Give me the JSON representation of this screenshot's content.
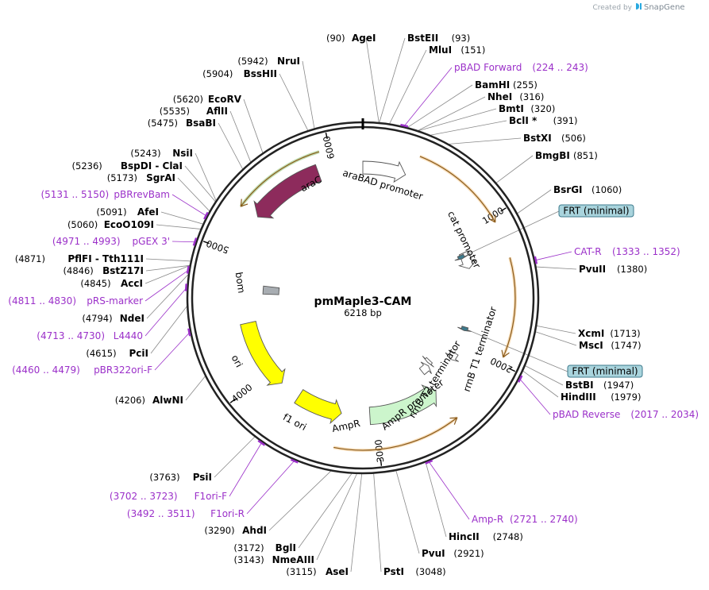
{
  "watermark": {
    "prefix": "Created by",
    "brand": "SnapGene"
  },
  "plasmid": {
    "name": "pmMaple3-CAM",
    "length": "6218 bp",
    "total_bp": 6218
  },
  "ticks": [
    "1000",
    "2000",
    "3000",
    "4000",
    "5000",
    "6000"
  ],
  "features": [
    {
      "id": "araC",
      "label": "araC",
      "start": 5312,
      "end": 5880,
      "color": "#8d2b5c",
      "text_color": "#ffffff",
      "direction": "reverse"
    },
    {
      "id": "araBAD-promoter",
      "label": "araBAD promoter",
      "start": 6218,
      "end": 330,
      "color": "#ffffff",
      "text_color": "#000000",
      "direction": "forward"
    },
    {
      "id": "cat-promoter",
      "label": "cat promoter",
      "start": 1140,
      "end": 1290,
      "color": "#ffffff",
      "text_color": "#000000",
      "direction": "forward"
    },
    {
      "id": "frt-1",
      "label": "FRT (minimal)",
      "start": 1150,
      "end": 1185,
      "color": "#3d7a8c",
      "text_color": "#000000",
      "direction": "forward"
    },
    {
      "id": "frt-2",
      "label": "FRT (minimal)",
      "start": 1830,
      "end": 1865,
      "color": "#3d7a8c",
      "text_color": "#000000",
      "direction": "forward"
    },
    {
      "id": "rrnB-T1",
      "label": "rrnB T1 terminator",
      "start": 2090,
      "end": 2160,
      "color": "#ffffff",
      "text_color": "#000000",
      "direction": "forward"
    },
    {
      "id": "rrnB-T2",
      "label": "rrnB T2 terminator",
      "start": 2300,
      "end": 2330,
      "color": "#ffffff",
      "text_color": "#000000",
      "direction": "forward"
    },
    {
      "id": "ampr-promoter",
      "label": "AmpR promoter",
      "start": 2350,
      "end": 2440,
      "color": "#ffffff",
      "text_color": "#000000",
      "direction": "reverse"
    },
    {
      "id": "AmpR",
      "label": "AmpR",
      "start": 2450,
      "end": 3050,
      "color": "#ccf5cc",
      "text_color": "#000000",
      "direction": "reverse"
    },
    {
      "id": "f1-ori",
      "label": "f1 ori",
      "start": 3290,
      "end": 3680,
      "color": "#ffff00",
      "text_color": "#000000",
      "direction": "reverse"
    },
    {
      "id": "ori",
      "label": "ori",
      "start": 3860,
      "end": 4450,
      "color": "#ffff00",
      "text_color": "#000000",
      "direction": "reverse"
    },
    {
      "id": "bom",
      "label": "bom",
      "start": 4700,
      "end": 4780,
      "color": "#a8adb2",
      "text_color": "#000000",
      "direction": "none"
    }
  ],
  "orf_arcs": [
    {
      "start": 5300,
      "end": 5930,
      "color": "#4b9e1e",
      "direction": "reverse"
    },
    {
      "start": 380,
      "end": 1040,
      "color": "#e8a13c",
      "direction": "forward"
    },
    {
      "start": 1290,
      "end": 1950,
      "color": "#e8a13c",
      "direction": "forward"
    },
    {
      "start": 2450,
      "end": 3300,
      "color": "#e8a13c",
      "direction": "reverse"
    }
  ],
  "sites_right": [
    {
      "name": "AgeI",
      "pos": "(90)",
      "position": 90,
      "name_first": false
    },
    {
      "name": "BstEII",
      "pos": "(93)",
      "position": 93,
      "name_first": true
    },
    {
      "name": "MluI",
      "pos": "(151)",
      "position": 151,
      "name_first": true
    },
    {
      "name": "BamHI",
      "pos": "(255)",
      "position": 255,
      "name_first": true
    },
    {
      "name": "NheI",
      "pos": "(316)",
      "position": 316,
      "name_first": true
    },
    {
      "name": "BmtI",
      "pos": "(320)",
      "position": 320,
      "name_first": true
    },
    {
      "name": "BclI *",
      "pos": "(391)",
      "position": 391,
      "name_first": true
    },
    {
      "name": "BstXI",
      "pos": "(506)",
      "position": 506,
      "name_first": true
    },
    {
      "name": "BmgBI",
      "pos": "(851)",
      "position": 851,
      "name_first": true
    },
    {
      "name": "BsrGI",
      "pos": "(1060)",
      "position": 1060,
      "name_first": true
    },
    {
      "name": "PvuII",
      "pos": "(1380)",
      "position": 1380,
      "name_first": true
    },
    {
      "name": "XcmI",
      "pos": "(1713)",
      "position": 1713,
      "name_first": true
    },
    {
      "name": "MscI",
      "pos": "(1747)",
      "position": 1747,
      "name_first": true
    },
    {
      "name": "BstBI",
      "pos": "(1947)",
      "position": 1947,
      "name_first": true
    },
    {
      "name": "HindIII",
      "pos": "(1979)",
      "position": 1979,
      "name_first": true
    },
    {
      "name": "HincII",
      "pos": "(2748)",
      "position": 2748,
      "name_first": true
    },
    {
      "name": "PvuI",
      "pos": "(2921)",
      "position": 2921,
      "name_first": true
    },
    {
      "name": "PstI",
      "pos": "(3048)",
      "position": 3048,
      "name_first": true
    }
  ],
  "sites_left": [
    {
      "name": "NruI",
      "pos": "(5942)",
      "position": 5942
    },
    {
      "name": "BssHII",
      "pos": "(5904)",
      "position": 5904
    },
    {
      "name": "EcoRV",
      "pos": "(5620)",
      "position": 5620
    },
    {
      "name": "AflII",
      "pos": "(5535)",
      "position": 5535
    },
    {
      "name": "BsaBI",
      "pos": "(5475)",
      "position": 5475
    },
    {
      "name": "NsiI",
      "pos": "(5243)",
      "position": 5243
    },
    {
      "name": "BspDI - ClaI",
      "pos": "(5236)",
      "position": 5236
    },
    {
      "name": "SgrAI",
      "pos": "(5173)",
      "position": 5173
    },
    {
      "name": "AfeI",
      "pos": "(5091)",
      "position": 5091
    },
    {
      "name": "EcoO109I",
      "pos": "(5060)",
      "position": 5060
    },
    {
      "name": "PflFI - Tth111I",
      "pos": "(4871)",
      "position": 4871
    },
    {
      "name": "BstZ17I",
      "pos": "(4846)",
      "position": 4846
    },
    {
      "name": "AccI",
      "pos": "(4845)",
      "position": 4845
    },
    {
      "name": "NdeI",
      "pos": "(4794)",
      "position": 4794
    },
    {
      "name": "PciI",
      "pos": "(4615)",
      "position": 4615
    },
    {
      "name": "AlwNI",
      "pos": "(4206)",
      "position": 4206
    },
    {
      "name": "PsiI",
      "pos": "(3763)",
      "position": 3763
    },
    {
      "name": "AhdI",
      "pos": "(3290)",
      "position": 3290
    },
    {
      "name": "BglI",
      "pos": "(3172)",
      "position": 3172
    },
    {
      "name": "NmeAIII",
      "pos": "(3143)",
      "position": 3143
    },
    {
      "name": "AseI",
      "pos": "(3115)",
      "position": 3115
    }
  ],
  "primers": [
    {
      "label": "pBAD Forward",
      "range": "(224 .. 243)",
      "start": 224,
      "end": 243,
      "side": "right"
    },
    {
      "label": "CAT-R",
      "range": "(1333 .. 1352)",
      "start": 1333,
      "end": 1352,
      "side": "right"
    },
    {
      "label": "pBAD Reverse",
      "range": "(2017 .. 2034)",
      "start": 2017,
      "end": 2034,
      "side": "right"
    },
    {
      "label": "Amp-R",
      "range": "(2721 .. 2740)",
      "start": 2721,
      "end": 2740,
      "side": "right"
    },
    {
      "label": "pBRrevBam",
      "range": "(5131 .. 5150)",
      "start": 5131,
      "end": 5150,
      "side": "left"
    },
    {
      "label": "pGEX 3'",
      "range": "(4971 .. 4993)",
      "start": 4971,
      "end": 4993,
      "side": "left"
    },
    {
      "label": "pRS-marker",
      "range": "(4811 .. 4830)",
      "start": 4811,
      "end": 4830,
      "side": "left"
    },
    {
      "label": "L4440",
      "range": "(4713 .. 4730)",
      "start": 4713,
      "end": 4730,
      "side": "left"
    },
    {
      "label": "pBR322ori-F",
      "range": "(4460 .. 4479)",
      "start": 4460,
      "end": 4479,
      "side": "left"
    },
    {
      "label": "F1ori-F",
      "range": "(3702 .. 3723)",
      "start": 3702,
      "end": 3723,
      "side": "left"
    },
    {
      "label": "F1ori-R",
      "range": "(3492 .. 3511)",
      "start": 3492,
      "end": 3511,
      "side": "left"
    }
  ],
  "colors": {
    "primer": "#9b30c9",
    "badge_fill": "#a9d4dd",
    "badge_stroke": "#3d7a8c",
    "backbone": "#222222"
  }
}
